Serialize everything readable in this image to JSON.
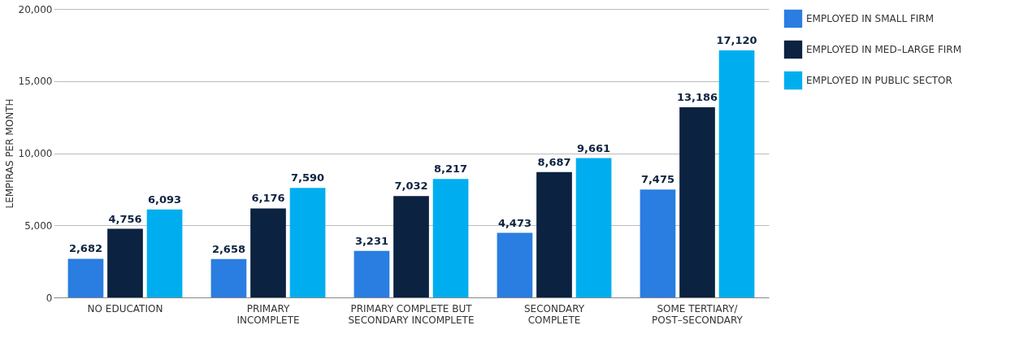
{
  "chart_data": {
    "type": "bar",
    "ylabel": "LEMPIRAS PER MONTH",
    "categories": [
      "NO EDUCATION",
      "PRIMARY\nINCOMPLETE",
      "PRIMARY COMPLETE BUT\nSECONDARY INCOMPLETE",
      "SECONDARY\nCOMPLETE",
      "SOME TERTIARY/\nPOST–SECONDARY"
    ],
    "series": [
      {
        "name": "EMPLOYED IN SMALL FIRM",
        "color": "#2a7de1",
        "values": [
          2682,
          2658,
          3231,
          4473,
          7475
        ],
        "value_labels": [
          "2,682",
          "2,658",
          "3,231",
          "4,473",
          "7,475"
        ]
      },
      {
        "name": "EMPLOYED IN MED–LARGE FIRM",
        "color": "#0b2240",
        "values": [
          4756,
          6176,
          7032,
          8687,
          13186
        ],
        "value_labels": [
          "4,756",
          "6,176",
          "7,032",
          "8,687",
          "13,186"
        ]
      },
      {
        "name": "EMPLOYED IN PUBLIC SECTOR",
        "color": "#00aeef",
        "values": [
          6093,
          7590,
          8217,
          9661,
          17120
        ],
        "value_labels": [
          "6,093",
          "7,590",
          "8,217",
          "9,661",
          "17,120"
        ]
      }
    ],
    "ylim": [
      0,
      20000
    ],
    "yticks": [
      0,
      {
        "value": 5000,
        "label": "5,000"
      },
      {
        "value": 10000,
        "label": "10,000"
      },
      {
        "value": 15000,
        "label": "15,000"
      },
      {
        "value": 20000,
        "label": "20,000"
      }
    ],
    "grid": "y",
    "legend": "right"
  }
}
